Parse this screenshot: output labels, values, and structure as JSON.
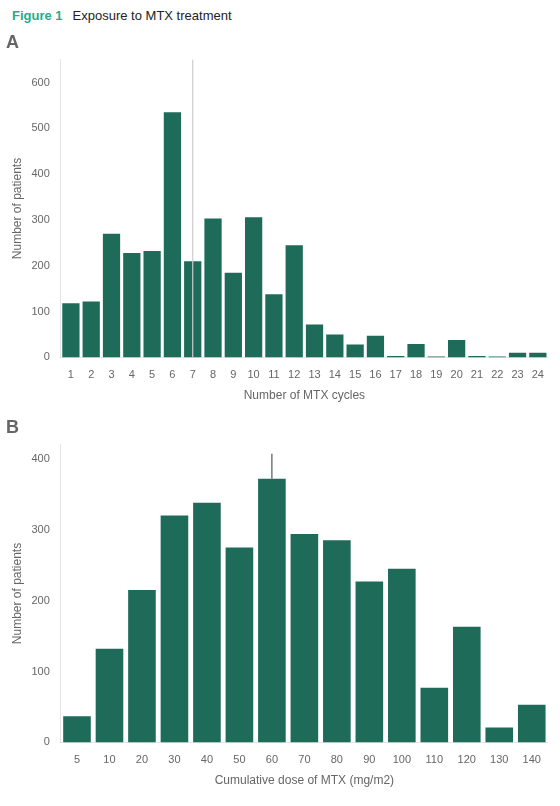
{
  "figure_label": "Figure 1",
  "figure_label_color": "#2aaa8a",
  "title": "Exposure to MTX treatment",
  "chart_data": [
    {
      "type": "bar",
      "title": "A",
      "xlabel": "Number of MTX cycles",
      "ylabel": "Number of patients",
      "categories": [
        1,
        2,
        3,
        4,
        5,
        6,
        7,
        8,
        9,
        10,
        11,
        12,
        13,
        14,
        15,
        16,
        17,
        18,
        19,
        20,
        21,
        22,
        23,
        24
      ],
      "values": [
        118,
        122,
        270,
        228,
        232,
        535,
        210,
        303,
        185,
        306,
        138,
        245,
        72,
        50,
        28,
        47,
        3,
        29,
        2,
        38,
        3,
        2,
        10,
        10
      ],
      "color": "#1e6b5a",
      "ylim": [
        0,
        650
      ],
      "yticks": [
        0,
        100,
        200,
        300,
        400,
        500,
        600
      ],
      "grid": false,
      "median_x": 7
    },
    {
      "type": "bar",
      "title": "B",
      "xlabel": "Cumulative dose of MTX (mg/m2)",
      "ylabel": "Number of patients",
      "categories": [
        5,
        10,
        20,
        30,
        40,
        50,
        60,
        70,
        80,
        90,
        100,
        110,
        120,
        130,
        140
      ],
      "values": [
        37,
        132,
        215,
        320,
        338,
        275,
        372,
        294,
        285,
        227,
        245,
        77,
        163,
        21,
        53
      ],
      "color": "#1e6b5a",
      "ylim": [
        0,
        420
      ],
      "yticks": [
        0,
        100,
        200,
        300,
        400
      ],
      "grid": false,
      "median_x": 60
    }
  ]
}
